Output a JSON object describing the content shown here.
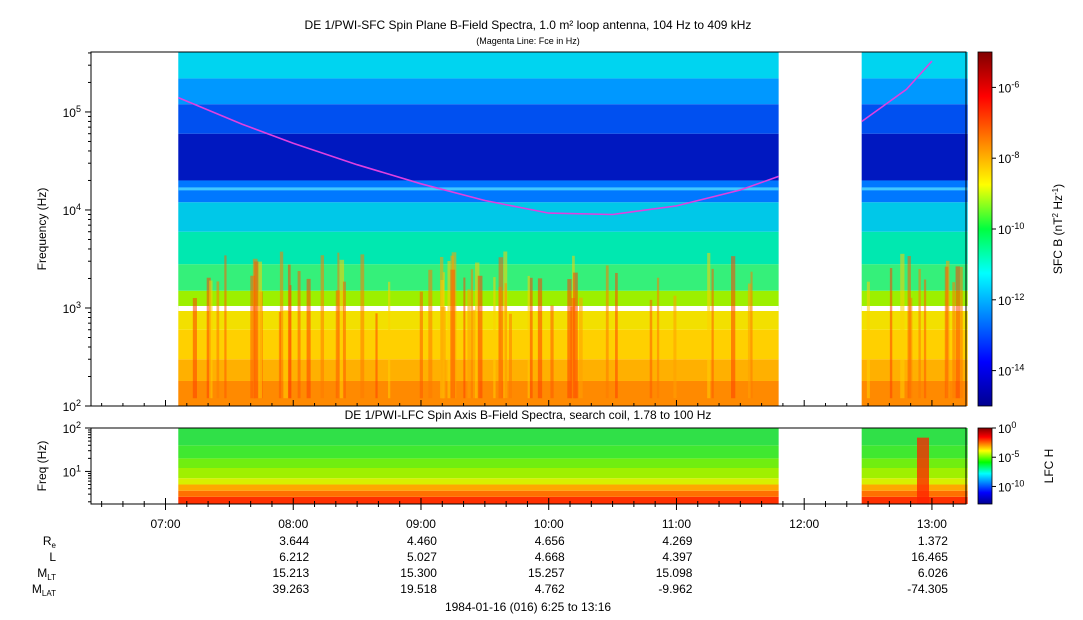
{
  "chart_data": [
    {
      "type": "heatmap",
      "title": "DE 1/PWI-SFC  Spin Plane B-Field Spectra, 1.0 m² loop antenna, 104 Hz to 409 kHz",
      "subtitle": "(Magenta Line: Fce in Hz)",
      "ylabel": "Frequency (Hz)",
      "yscale": "log",
      "ylim": [
        100,
        409000
      ],
      "y_ticks": [
        {
          "base": "10",
          "exp": "2"
        },
        {
          "base": "10",
          "exp": "3"
        },
        {
          "base": "10",
          "exp": "4"
        },
        {
          "base": "10",
          "exp": "5"
        }
      ],
      "colorbar": {
        "label_main": "SFC B (nT",
        "label_exp1": "2",
        "label_mid": " Hz",
        "label_exp2": "-1",
        "label_end": ")",
        "scale": "log",
        "ticks": [
          {
            "base": "10",
            "exp": "-14"
          },
          {
            "base": "10",
            "exp": "-12"
          },
          {
            "base": "10",
            "exp": "-10"
          },
          {
            "base": "10",
            "exp": "-8"
          },
          {
            "base": "10",
            "exp": "-6"
          }
        ]
      },
      "data_intervals_hours": [
        [
          7.1,
          11.8
        ],
        [
          12.45,
          13.28
        ]
      ],
      "fce_line_name": "Fce",
      "fce_curve": [
        {
          "t": 7.1,
          "f": 140000
        },
        {
          "t": 7.6,
          "f": 75000
        },
        {
          "t": 8.0,
          "f": 48000
        },
        {
          "t": 8.5,
          "f": 29000
        },
        {
          "t": 9.0,
          "f": 18500
        },
        {
          "t": 9.5,
          "f": 12500
        },
        {
          "t": 10.0,
          "f": 9300
        },
        {
          "t": 10.5,
          "f": 9000
        },
        {
          "t": 11.0,
          "f": 11000
        },
        {
          "t": 11.5,
          "f": 16000
        },
        {
          "t": 11.8,
          "f": 22000
        },
        {
          "t": 12.45,
          "f": 80000
        },
        {
          "t": 12.8,
          "f": 170000
        },
        {
          "t": 13.0,
          "f": 330000
        }
      ]
    },
    {
      "type": "heatmap",
      "title": "DE 1/PWI-LFC  Spin Axis B-Field Spectra, search coil, 1.78 to 100 Hz",
      "ylabel": "Freq (Hz)",
      "yscale": "log",
      "ylim": [
        1.78,
        100
      ],
      "y_ticks": [
        {
          "base": "10",
          "exp": "1"
        },
        {
          "base": "10",
          "exp": "2"
        }
      ],
      "colorbar": {
        "label": "LFC H",
        "scale": "log",
        "ticks": [
          {
            "base": "10",
            "exp": "-10"
          },
          {
            "base": "10",
            "exp": "-5"
          },
          {
            "base": "10",
            "exp": "0"
          }
        ]
      },
      "data_intervals_hours": [
        [
          7.1,
          11.8
        ],
        [
          12.45,
          13.28
        ]
      ]
    }
  ],
  "time_axis": {
    "tick_labels": [
      "07:00",
      "08:00",
      "09:00",
      "10:00",
      "11:00",
      "12:00",
      "13:00"
    ],
    "tick_hours": [
      7,
      8,
      9,
      10,
      11,
      12,
      13
    ],
    "range_hours": [
      6.4167,
      13.2667
    ]
  },
  "ephemeris": {
    "rows": [
      {
        "name": "R",
        "sub": "e",
        "values": [
          "3.644",
          "4.460",
          "4.656",
          "4.269",
          "",
          "1.372"
        ]
      },
      {
        "name": "L",
        "sub": "",
        "values": [
          "6.212",
          "5.027",
          "4.668",
          "4.397",
          "",
          "16.465"
        ]
      },
      {
        "name": "M",
        "sub": "LT",
        "values": [
          "15.213",
          "15.300",
          "15.257",
          "15.098",
          "",
          "6.026"
        ]
      },
      {
        "name": "M",
        "sub": "LAT",
        "values": [
          "39.263",
          "19.518",
          "4.762",
          "-9.962",
          "",
          "-74.305"
        ]
      }
    ],
    "column_hours": [
      8,
      9,
      10,
      11,
      12,
      13
    ]
  },
  "footer": "1984-01-16 (016) 6:25 to 13:16",
  "colors": {
    "fce_line": "#e040e0",
    "gap": "#ffffff"
  }
}
